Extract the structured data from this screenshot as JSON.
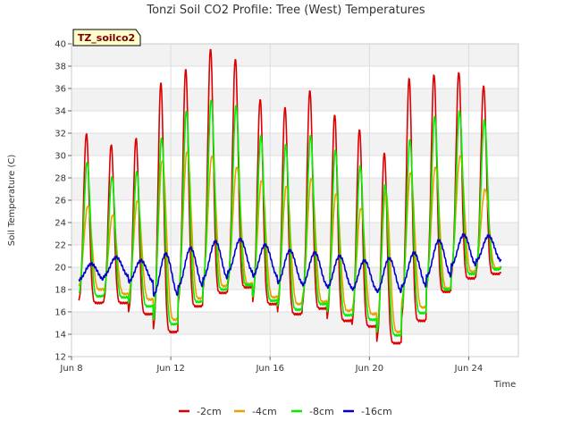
{
  "chart_data": {
    "type": "line",
    "title": "Tonzi Soil CO2 Profile: Tree (West) Temperatures",
    "xlabel": "Time",
    "ylabel": "Soil Temperature (C)",
    "tag": "TZ_soilco2",
    "xlim": [
      "Jun 8",
      "Jun 26"
    ],
    "ylim": [
      12,
      40
    ],
    "y_ticks": [
      12,
      14,
      16,
      18,
      20,
      22,
      24,
      26,
      28,
      30,
      32,
      34,
      36,
      38,
      40
    ],
    "x_ticks": [
      {
        "day": 8,
        "label": "Jun 8"
      },
      {
        "day": 12,
        "label": "Jun 12"
      },
      {
        "day": 16,
        "label": "Jun 16"
      },
      {
        "day": 20,
        "label": "Jun 20"
      },
      {
        "day": 24,
        "label": "Jun 24"
      }
    ],
    "grid": true,
    "legend_position": "bottom",
    "day_start": 8.3,
    "day_end": 25.3,
    "series": [
      {
        "name": "-2cm",
        "color": "#dd0000",
        "daily_max": [
          32.0,
          31.0,
          31.6,
          36.6,
          37.8,
          39.6,
          38.7,
          35.1,
          34.4,
          35.9,
          33.7,
          32.4,
          30.3,
          37.0,
          37.3,
          37.5,
          36.3
        ],
        "daily_min": [
          16.8,
          16.8,
          15.8,
          14.2,
          16.5,
          17.7,
          18.2,
          16.7,
          15.8,
          16.3,
          15.2,
          14.7,
          13.2,
          15.2,
          17.8,
          19.0,
          19.4
        ]
      },
      {
        "name": "-4cm",
        "color": "#e8a000",
        "daily_max": [
          25.5,
          24.7,
          26.0,
          29.6,
          30.4,
          30.0,
          29.0,
          27.8,
          27.3,
          28.0,
          26.6,
          25.3,
          26.8,
          28.5,
          29.0,
          30.0,
          27.0
        ],
        "daily_min": [
          18.0,
          17.6,
          17.1,
          15.3,
          17.2,
          18.3,
          18.5,
          17.3,
          16.7,
          16.9,
          16.1,
          15.8,
          14.2,
          16.4,
          18.1,
          19.6,
          19.9
        ]
      },
      {
        "name": "-8cm",
        "color": "#00ee00",
        "daily_max": [
          29.4,
          28.1,
          28.6,
          31.6,
          34.0,
          35.0,
          34.5,
          31.8,
          31.0,
          31.8,
          30.5,
          29.1,
          27.4,
          31.4,
          33.5,
          34.0,
          33.2
        ],
        "daily_min": [
          17.4,
          17.3,
          16.5,
          14.9,
          16.9,
          18.0,
          18.4,
          17.0,
          16.2,
          16.7,
          15.7,
          15.3,
          13.9,
          15.9,
          18.0,
          19.4,
          19.8
        ]
      },
      {
        "name": "-16cm",
        "color": "#0000cc",
        "daily_max": [
          20.3,
          20.9,
          20.6,
          21.2,
          21.7,
          22.3,
          22.5,
          22.0,
          21.5,
          21.3,
          21.0,
          20.6,
          20.8,
          21.3,
          22.4,
          22.9,
          22.8
        ],
        "daily_min": [
          18.9,
          19.2,
          18.7,
          17.5,
          18.3,
          19.0,
          19.6,
          19.2,
          18.6,
          18.4,
          18.2,
          18.0,
          17.8,
          18.3,
          19.2,
          20.2,
          20.6
        ]
      }
    ]
  }
}
